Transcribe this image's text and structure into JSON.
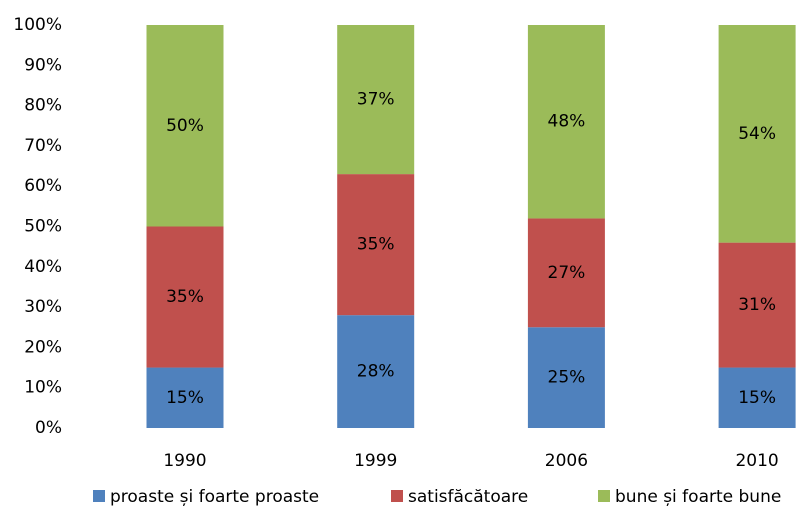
{
  "chart_data": {
    "type": "stacked_bar",
    "categories": [
      "1990",
      "1999",
      "2006",
      "2010"
    ],
    "series": [
      {
        "name": "proaste și foarte proaste",
        "color": "#4f81bd",
        "values": [
          15,
          28,
          25,
          15
        ],
        "value_labels": [
          "15%",
          "28%",
          "25%",
          "15%"
        ]
      },
      {
        "name": "satisfăcătoare",
        "color": "#c0504d",
        "values": [
          35,
          35,
          27,
          31
        ],
        "value_labels": [
          "35%",
          "35%",
          "27%",
          "31%"
        ]
      },
      {
        "name": "bune și foarte bune",
        "color": "#9bbb59",
        "values": [
          50,
          37,
          48,
          54
        ],
        "value_labels": [
          "50%",
          "37%",
          "48%",
          "54%"
        ]
      }
    ],
    "ylim": [
      0,
      100
    ],
    "yticks": [
      {
        "value": 0,
        "label": "0%"
      },
      {
        "value": 10,
        "label": "10%"
      },
      {
        "value": 20,
        "label": "20%"
      },
      {
        "value": 30,
        "label": "30%"
      },
      {
        "value": 40,
        "label": "40%"
      },
      {
        "value": 50,
        "label": "50%"
      },
      {
        "value": 60,
        "label": "60%"
      },
      {
        "value": 70,
        "label": "70%"
      },
      {
        "value": 80,
        "label": "80%"
      },
      {
        "value": 90,
        "label": "90%"
      },
      {
        "value": 100,
        "label": "100%"
      }
    ],
    "legend": "bottom"
  }
}
